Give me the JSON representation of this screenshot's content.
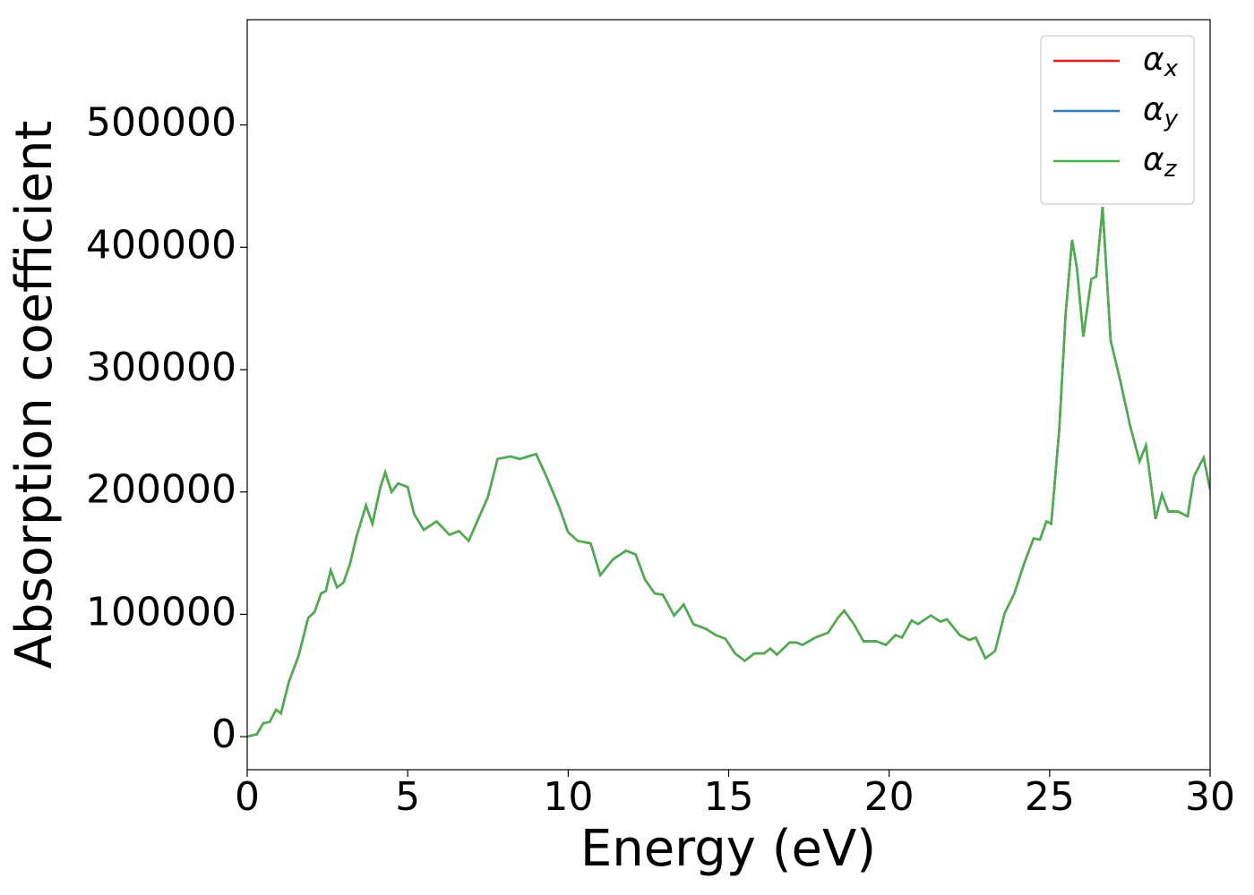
{
  "chart_data": {
    "type": "line",
    "xlabel": "Energy (eV)",
    "ylabel": "Absorption coefficient",
    "x": [
      0,
      0.3,
      0.5,
      0.7,
      0.9,
      1.05,
      1.3,
      1.6,
      1.9,
      2.1,
      2.3,
      2.45,
      2.6,
      2.8,
      3.0,
      3.2,
      3.4,
      3.7,
      3.9,
      4.15,
      4.3,
      4.5,
      4.7,
      5.0,
      5.2,
      5.5,
      5.9,
      6.3,
      6.6,
      6.9,
      7.2,
      7.5,
      7.8,
      8.2,
      8.5,
      9.0,
      9.3,
      9.7,
      10.0,
      10.3,
      10.7,
      11.0,
      11.4,
      11.8,
      12.1,
      12.4,
      12.7,
      12.95,
      13.3,
      13.6,
      13.9,
      14.3,
      14.6,
      14.9,
      15.2,
      15.5,
      15.8,
      16.1,
      16.3,
      16.5,
      16.9,
      17.1,
      17.3,
      17.7,
      18.1,
      18.4,
      18.6,
      18.9,
      19.2,
      19.6,
      19.9,
      20.2,
      20.4,
      20.7,
      20.9,
      21.3,
      21.6,
      21.8,
      22.2,
      22.5,
      22.7,
      23.0,
      23.3,
      23.6,
      23.9,
      24.2,
      24.5,
      24.7,
      24.9,
      25.05,
      25.3,
      25.5,
      25.7,
      25.85,
      26.05,
      26.3,
      26.45,
      26.65,
      26.9,
      27.2,
      27.5,
      27.8,
      28.0,
      28.3,
      28.5,
      28.7,
      29.0,
      29.3,
      29.5,
      29.8,
      30.0
    ],
    "series": [
      {
        "name": "αx",
        "color": "#e41a1c",
        "values": [
          0,
          2000,
          11000,
          12000,
          22000,
          19000,
          45000,
          66000,
          97000,
          102000,
          117000,
          119000,
          136000,
          122000,
          126000,
          141000,
          163000,
          189000,
          174000,
          204000,
          216000,
          200000,
          207000,
          204000,
          182000,
          169000,
          176000,
          165000,
          168000,
          160000,
          178000,
          196000,
          227000,
          229000,
          227000,
          231000,
          214000,
          189000,
          167000,
          160000,
          158000,
          132000,
          145000,
          152000,
          149000,
          128000,
          117000,
          116000,
          99000,
          108000,
          92000,
          88000,
          83000,
          80000,
          68000,
          62000,
          68000,
          68000,
          72000,
          67000,
          77000,
          77000,
          75000,
          81000,
          85000,
          97000,
          103000,
          92000,
          78000,
          78000,
          75000,
          83000,
          81000,
          95000,
          92000,
          99000,
          94000,
          96000,
          83000,
          79000,
          81000,
          64000,
          70000,
          101000,
          117000,
          141000,
          162000,
          161000,
          176000,
          174000,
          251000,
          346000,
          406000,
          383000,
          327000,
          374000,
          376000,
          433000,
          324000,
          291000,
          255000,
          225000,
          238000,
          178000,
          198000,
          184000,
          184000,
          180000,
          213000,
          228000,
          202000
        ]
      },
      {
        "name": "αy",
        "color": "#377eb8",
        "values": [
          0,
          2000,
          11000,
          12000,
          22000,
          19000,
          45000,
          66000,
          97000,
          102000,
          117000,
          119000,
          136000,
          122000,
          126000,
          141000,
          163000,
          189000,
          174000,
          204000,
          216000,
          200000,
          207000,
          204000,
          182000,
          169000,
          176000,
          165000,
          168000,
          160000,
          178000,
          196000,
          227000,
          229000,
          227000,
          231000,
          214000,
          189000,
          167000,
          160000,
          158000,
          132000,
          145000,
          152000,
          149000,
          128000,
          117000,
          116000,
          99000,
          108000,
          92000,
          88000,
          83000,
          80000,
          68000,
          62000,
          68000,
          68000,
          72000,
          67000,
          77000,
          77000,
          75000,
          81000,
          85000,
          97000,
          103000,
          92000,
          78000,
          78000,
          75000,
          83000,
          81000,
          95000,
          92000,
          99000,
          94000,
          96000,
          83000,
          79000,
          81000,
          64000,
          70000,
          101000,
          117000,
          141000,
          162000,
          161000,
          176000,
          174000,
          251000,
          346000,
          406000,
          383000,
          327000,
          374000,
          376000,
          433000,
          324000,
          291000,
          255000,
          225000,
          238000,
          178000,
          198000,
          184000,
          184000,
          180000,
          213000,
          228000,
          202000
        ]
      },
      {
        "name": "αz",
        "color": "#4daf4a",
        "values": [
          0,
          2000,
          11000,
          12000,
          22000,
          19000,
          45000,
          66000,
          97000,
          102000,
          117000,
          119000,
          136000,
          122000,
          126000,
          141000,
          163000,
          189000,
          174000,
          204000,
          216000,
          200000,
          207000,
          204000,
          182000,
          169000,
          176000,
          165000,
          168000,
          160000,
          178000,
          196000,
          227000,
          229000,
          227000,
          231000,
          214000,
          189000,
          167000,
          160000,
          158000,
          132000,
          145000,
          152000,
          149000,
          128000,
          117000,
          116000,
          99000,
          108000,
          92000,
          88000,
          83000,
          80000,
          68000,
          62000,
          68000,
          68000,
          72000,
          67000,
          77000,
          77000,
          75000,
          81000,
          85000,
          97000,
          103000,
          92000,
          78000,
          78000,
          75000,
          83000,
          81000,
          95000,
          92000,
          99000,
          94000,
          96000,
          83000,
          79000,
          81000,
          64000,
          70000,
          101000,
          117000,
          141000,
          162000,
          161000,
          176000,
          174000,
          251000,
          346000,
          406000,
          383000,
          327000,
          374000,
          376000,
          433000,
          324000,
          291000,
          255000,
          225000,
          238000,
          178000,
          198000,
          184000,
          184000,
          180000,
          213000,
          228000,
          202000
        ]
      }
    ],
    "xlim": [
      0,
      30
    ],
    "xticks": [
      0,
      5,
      10,
      15,
      20,
      25,
      30
    ],
    "ylim": [
      -27000,
      586000
    ],
    "yticks": [
      0,
      100000,
      200000,
      300000,
      400000,
      500000
    ],
    "grid": false,
    "legend": "upper right"
  }
}
